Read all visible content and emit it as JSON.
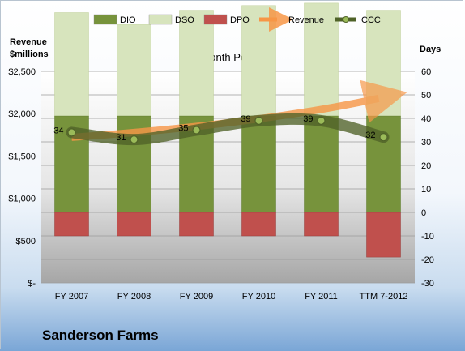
{
  "chart_data": {
    "type": "bar",
    "title": "12-Month Periods",
    "company": "Sanderson Farms",
    "left_axis_label_line1": "Revenue",
    "left_axis_label_line2": "$millions",
    "right_axis_label": "Days",
    "categories": [
      "FY 2007",
      "FY 2008",
      "FY 2009",
      "FY 2010",
      "FY 2011",
      "TTM 7-2012"
    ],
    "left_axis": {
      "min": 0,
      "max": 2500,
      "step": 500,
      "ticks": [
        "$-",
        "$500",
        "$1,000",
        "$1,500",
        "$2,000",
        "$2,500"
      ]
    },
    "right_axis": {
      "min": -30,
      "max": 60,
      "step": 10,
      "ticks": [
        "-30",
        "-20",
        "-10",
        "0",
        "10",
        "20",
        "30",
        "40",
        "50",
        "60"
      ]
    },
    "series": [
      {
        "name": "DIO",
        "unit": "days",
        "values": [
          41,
          41,
          41,
          41,
          41,
          41
        ],
        "color": "#77933c"
      },
      {
        "name": "DSO",
        "unit": "days",
        "values": [
          44,
          39,
          45,
          47,
          48,
          45
        ],
        "color": "#d7e4bd"
      },
      {
        "name": "DPO",
        "unit": "days",
        "values": [
          -10,
          -10,
          -10,
          -10,
          -10,
          -19
        ],
        "color": "#c0504d"
      },
      {
        "name": "Revenue",
        "unit": "$millions",
        "values": [
          1720,
          1830,
          1900,
          1970,
          2000,
          2200
        ],
        "color": "#f79646"
      },
      {
        "name": "CCC",
        "unit": "days",
        "values": [
          34,
          31,
          35,
          39,
          39,
          32
        ],
        "color": "#4f6228"
      }
    ],
    "ccc_labels": [
      "34",
      "31",
      "35",
      "39",
      "39",
      "32"
    ],
    "legend_position": "top",
    "grid": true
  }
}
